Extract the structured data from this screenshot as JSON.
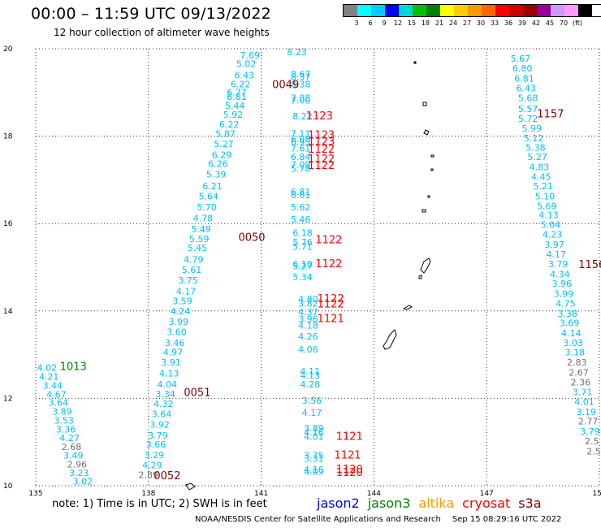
{
  "header": {
    "title": "00:00 – 11:59 UTC 09/13/2022",
    "subtitle": "12 hour collection of altimeter wave heights"
  },
  "legend": {
    "colors": [
      "#808080",
      "#00ffff",
      "#00ccff",
      "#0000ff",
      "#00d8d8",
      "#00c000",
      "#008000",
      "#ffff00",
      "#ffcc00",
      "#ff9900",
      "#ff6600",
      "#ff0000",
      "#cc0000",
      "#990000",
      "#990099",
      "#cc99ff",
      "#ff99ff",
      "#000000"
    ],
    "labels": [
      "3",
      "6",
      "9",
      "12",
      "15",
      "18",
      "21",
      "24",
      "27",
      "30",
      "33",
      "36",
      "39",
      "42",
      "45",
      "70",
      "(ft)"
    ]
  },
  "chart_data": {
    "type": "map-scatter",
    "xlim": [
      135,
      150
    ],
    "ylim": [
      10,
      20
    ],
    "x_ticks": [
      135,
      138,
      141,
      144,
      147,
      150
    ],
    "y_ticks": [
      10,
      12,
      14,
      16,
      18,
      20
    ],
    "x_tick_labels": [
      "135",
      "138",
      "141",
      "144",
      "147",
      "150"
    ],
    "y_tick_labels": [
      "10",
      "12",
      "14",
      "16",
      "18",
      "20"
    ],
    "colors": {
      "lightblue": "#00bfff",
      "cyan": "#00e0e0",
      "gray": "#707070",
      "red": "#ff0000",
      "darkred": "#800000",
      "green": "#008000"
    },
    "waves": [
      {
        "lon": 141.95,
        "lat": 19.85,
        "text": "8.23",
        "c": "lightblue"
      },
      {
        "lon": 140.7,
        "lat": 19.78,
        "text": "7.69",
        "c": "lightblue"
      },
      {
        "lon": 140.6,
        "lat": 19.58,
        "text": "5.02",
        "c": "lightblue"
      },
      {
        "lon": 142.05,
        "lat": 19.35,
        "text": "8.67",
        "c": "lightblue"
      },
      {
        "lon": 140.55,
        "lat": 19.32,
        "text": "6.43",
        "c": "lightblue"
      },
      {
        "lon": 142.05,
        "lat": 19.28,
        "text": "8.37",
        "c": "lightblue"
      },
      {
        "lon": 142.05,
        "lat": 19.12,
        "text": "8.38",
        "c": "lightblue"
      },
      {
        "lon": 140.45,
        "lat": 19.12,
        "text": "6.22",
        "c": "lightblue"
      },
      {
        "lon": 140.35,
        "lat": 18.93,
        "text": "6.77",
        "c": "lightblue"
      },
      {
        "lon": 140.35,
        "lat": 18.83,
        "text": "6.81",
        "c": "lightblue"
      },
      {
        "lon": 142.05,
        "lat": 18.8,
        "text": "7.88",
        "c": "lightblue"
      },
      {
        "lon": 142.05,
        "lat": 18.75,
        "text": "7.00",
        "c": "lightblue"
      },
      {
        "lon": 140.3,
        "lat": 18.62,
        "text": "5.44",
        "c": "lightblue"
      },
      {
        "lon": 140.25,
        "lat": 18.42,
        "text": "5.92",
        "c": "lightblue"
      },
      {
        "lon": 142.1,
        "lat": 18.38,
        "text": "8.22",
        "c": "lightblue"
      },
      {
        "lon": 140.15,
        "lat": 18.2,
        "text": "6.22",
        "c": "lightblue"
      },
      {
        "lon": 140.05,
        "lat": 17.98,
        "text": "5.87",
        "c": "lightblue"
      },
      {
        "lon": 142.05,
        "lat": 17.98,
        "text": "7.11",
        "c": "lightblue"
      },
      {
        "lon": 142.05,
        "lat": 17.86,
        "text": "6.08",
        "c": "lightblue"
      },
      {
        "lon": 142.05,
        "lat": 17.8,
        "text": "6.93",
        "c": "lightblue"
      },
      {
        "lon": 140.0,
        "lat": 17.75,
        "text": "5.27",
        "c": "lightblue"
      },
      {
        "lon": 142.05,
        "lat": 17.65,
        "text": "7.61",
        "c": "lightblue"
      },
      {
        "lon": 139.95,
        "lat": 17.5,
        "text": "6.29",
        "c": "lightblue"
      },
      {
        "lon": 142.05,
        "lat": 17.45,
        "text": "6.84",
        "c": "lightblue"
      },
      {
        "lon": 139.85,
        "lat": 17.3,
        "text": "6.26",
        "c": "lightblue"
      },
      {
        "lon": 142.05,
        "lat": 17.28,
        "text": "7.09",
        "c": "lightblue"
      },
      {
        "lon": 142.05,
        "lat": 17.18,
        "text": "5.78",
        "c": "lightblue"
      },
      {
        "lon": 139.8,
        "lat": 17.05,
        "text": "5.39",
        "c": "lightblue"
      },
      {
        "lon": 139.7,
        "lat": 16.78,
        "text": "6.21",
        "c": "lightblue"
      },
      {
        "lon": 142.05,
        "lat": 16.65,
        "text": "6.81",
        "c": "lightblue"
      },
      {
        "lon": 142.05,
        "lat": 16.58,
        "text": "6.01",
        "c": "lightblue"
      },
      {
        "lon": 139.6,
        "lat": 16.55,
        "text": "5.64",
        "c": "lightblue"
      },
      {
        "lon": 139.55,
        "lat": 16.3,
        "text": "5.70",
        "c": "lightblue"
      },
      {
        "lon": 142.05,
        "lat": 16.3,
        "text": "5.62",
        "c": "lightblue"
      },
      {
        "lon": 139.45,
        "lat": 16.05,
        "text": "4.78",
        "c": "lightblue"
      },
      {
        "lon": 142.05,
        "lat": 16.02,
        "text": "5.46",
        "c": "lightblue"
      },
      {
        "lon": 139.4,
        "lat": 15.8,
        "text": "5.49",
        "c": "lightblue"
      },
      {
        "lon": 142.1,
        "lat": 15.72,
        "text": "6.18",
        "c": "lightblue"
      },
      {
        "lon": 139.35,
        "lat": 15.58,
        "text": "5.59",
        "c": "lightblue"
      },
      {
        "lon": 142.1,
        "lat": 15.5,
        "text": "5.76",
        "c": "lightblue"
      },
      {
        "lon": 142.1,
        "lat": 15.4,
        "text": "5.71",
        "c": "lightblue"
      },
      {
        "lon": 139.3,
        "lat": 15.37,
        "text": "5.45",
        "c": "lightblue"
      },
      {
        "lon": 139.2,
        "lat": 15.1,
        "text": "4.79",
        "c": "lightblue"
      },
      {
        "lon": 142.1,
        "lat": 15.0,
        "text": "6.10",
        "c": "lightblue"
      },
      {
        "lon": 142.1,
        "lat": 14.95,
        "text": "5.27",
        "c": "lightblue"
      },
      {
        "lon": 139.15,
        "lat": 14.87,
        "text": "5.61",
        "c": "lightblue"
      },
      {
        "lon": 142.1,
        "lat": 14.7,
        "text": "5.34",
        "c": "lightblue"
      },
      {
        "lon": 139.05,
        "lat": 14.63,
        "text": "3.75",
        "c": "lightblue"
      },
      {
        "lon": 139.0,
        "lat": 14.38,
        "text": "4.17",
        "c": "lightblue"
      },
      {
        "lon": 142.25,
        "lat": 14.2,
        "text": "4.80",
        "c": "lightblue"
      },
      {
        "lon": 142.25,
        "lat": 14.1,
        "text": "3.82",
        "c": "lightblue"
      },
      {
        "lon": 138.9,
        "lat": 14.15,
        "text": "3.59",
        "c": "lightblue"
      },
      {
        "lon": 142.25,
        "lat": 13.9,
        "text": "4.37",
        "c": "lightblue"
      },
      {
        "lon": 138.85,
        "lat": 13.92,
        "text": "4.24",
        "c": "lightblue"
      },
      {
        "lon": 142.25,
        "lat": 13.75,
        "text": "3.96",
        "c": "lightblue"
      },
      {
        "lon": 138.8,
        "lat": 13.68,
        "text": "3.99",
        "c": "lightblue"
      },
      {
        "lon": 142.25,
        "lat": 13.6,
        "text": "4.18",
        "c": "lightblue"
      },
      {
        "lon": 138.75,
        "lat": 13.45,
        "text": "3.60",
        "c": "lightblue"
      },
      {
        "lon": 142.25,
        "lat": 13.35,
        "text": "4.26",
        "c": "lightblue"
      },
      {
        "lon": 138.7,
        "lat": 13.2,
        "text": "3.46",
        "c": "lightblue"
      },
      {
        "lon": 142.25,
        "lat": 13.05,
        "text": "4.06",
        "c": "lightblue"
      },
      {
        "lon": 138.65,
        "lat": 12.98,
        "text": "4.97",
        "c": "lightblue"
      },
      {
        "lon": 138.6,
        "lat": 12.75,
        "text": "3.91",
        "c": "lightblue"
      },
      {
        "lon": 142.3,
        "lat": 12.55,
        "text": "4.11",
        "c": "lightblue"
      },
      {
        "lon": 142.3,
        "lat": 12.45,
        "text": "4.13",
        "c": "lightblue"
      },
      {
        "lon": 138.55,
        "lat": 12.5,
        "text": "4.13",
        "c": "lightblue"
      },
      {
        "lon": 138.5,
        "lat": 12.25,
        "text": "4.04",
        "c": "lightblue"
      },
      {
        "lon": 142.3,
        "lat": 12.25,
        "text": "4.28",
        "c": "lightblue"
      },
      {
        "lon": 138.45,
        "lat": 12.03,
        "text": "3.34",
        "c": "lightblue"
      },
      {
        "lon": 142.35,
        "lat": 11.88,
        "text": "3.56",
        "c": "lightblue"
      },
      {
        "lon": 138.4,
        "lat": 11.8,
        "text": "4.32",
        "c": "lightblue"
      },
      {
        "lon": 142.35,
        "lat": 11.6,
        "text": "4.17",
        "c": "lightblue"
      },
      {
        "lon": 138.35,
        "lat": 11.57,
        "text": "3.64",
        "c": "lightblue"
      },
      {
        "lon": 138.3,
        "lat": 11.33,
        "text": "3.92",
        "c": "lightblue"
      },
      {
        "lon": 142.4,
        "lat": 11.25,
        "text": "3.89",
        "c": "lightblue"
      },
      {
        "lon": 142.4,
        "lat": 11.15,
        "text": "4.16",
        "c": "lightblue"
      },
      {
        "lon": 138.25,
        "lat": 11.08,
        "text": "3.79",
        "c": "lightblue"
      },
      {
        "lon": 142.4,
        "lat": 11.05,
        "text": "4.01",
        "c": "lightblue"
      },
      {
        "lon": 138.2,
        "lat": 10.87,
        "text": "3.66",
        "c": "lightblue"
      },
      {
        "lon": 142.4,
        "lat": 10.62,
        "text": "3.75",
        "c": "lightblue"
      },
      {
        "lon": 138.15,
        "lat": 10.63,
        "text": "3.29",
        "c": "lightblue"
      },
      {
        "lon": 142.4,
        "lat": 10.55,
        "text": "3.31",
        "c": "lightblue"
      },
      {
        "lon": 138.1,
        "lat": 10.4,
        "text": "4.29",
        "c": "lightblue"
      },
      {
        "lon": 142.4,
        "lat": 10.3,
        "text": "4.16",
        "c": "lightblue"
      },
      {
        "lon": 142.4,
        "lat": 10.25,
        "text": "4.09",
        "c": "lightblue"
      },
      {
        "lon": 138.0,
        "lat": 10.18,
        "text": "2.89",
        "c": "gray"
      },
      {
        "lon": 135.3,
        "lat": 12.63,
        "text": "4.02",
        "c": "lightblue"
      },
      {
        "lon": 135.35,
        "lat": 12.43,
        "text": "4.21",
        "c": "lightblue"
      },
      {
        "lon": 135.45,
        "lat": 12.22,
        "text": "3.44",
        "c": "lightblue"
      },
      {
        "lon": 135.55,
        "lat": 12.02,
        "text": "4.67",
        "c": "lightblue"
      },
      {
        "lon": 135.6,
        "lat": 11.83,
        "text": "3.64",
        "c": "lightblue"
      },
      {
        "lon": 135.7,
        "lat": 11.63,
        "text": "3.89",
        "c": "lightblue"
      },
      {
        "lon": 135.75,
        "lat": 11.42,
        "text": "3.53",
        "c": "lightblue"
      },
      {
        "lon": 135.8,
        "lat": 11.22,
        "text": "3.36",
        "c": "lightblue"
      },
      {
        "lon": 135.9,
        "lat": 11.02,
        "text": "4.27",
        "c": "lightblue"
      },
      {
        "lon": 135.95,
        "lat": 10.82,
        "text": "2.68",
        "c": "gray"
      },
      {
        "lon": 136.0,
        "lat": 10.62,
        "text": "3.49",
        "c": "lightblue"
      },
      {
        "lon": 136.1,
        "lat": 10.42,
        "text": "2.96",
        "c": "gray"
      },
      {
        "lon": 136.15,
        "lat": 10.22,
        "text": "3.23",
        "c": "lightblue"
      },
      {
        "lon": 136.25,
        "lat": 10.03,
        "text": "3.02",
        "c": "lightblue"
      },
      {
        "lon": 147.9,
        "lat": 19.7,
        "text": "5.67",
        "c": "lightblue"
      },
      {
        "lon": 147.95,
        "lat": 19.48,
        "text": "6.80",
        "c": "lightblue"
      },
      {
        "lon": 148.0,
        "lat": 19.25,
        "text": "6.81",
        "c": "lightblue"
      },
      {
        "lon": 148.05,
        "lat": 19.02,
        "text": "6.43",
        "c": "lightblue"
      },
      {
        "lon": 148.1,
        "lat": 18.8,
        "text": "5.68",
        "c": "lightblue"
      },
      {
        "lon": 148.1,
        "lat": 18.55,
        "text": "5.57",
        "c": "lightblue"
      },
      {
        "lon": 148.1,
        "lat": 18.33,
        "text": "5.72",
        "c": "lightblue"
      },
      {
        "lon": 148.2,
        "lat": 18.1,
        "text": "5.99",
        "c": "lightblue"
      },
      {
        "lon": 148.25,
        "lat": 17.88,
        "text": "5.12",
        "c": "lightblue"
      },
      {
        "lon": 148.3,
        "lat": 17.67,
        "text": "5.38",
        "c": "lightblue"
      },
      {
        "lon": 148.35,
        "lat": 17.45,
        "text": "5.27",
        "c": "lightblue"
      },
      {
        "lon": 148.4,
        "lat": 17.22,
        "text": "4.83",
        "c": "lightblue"
      },
      {
        "lon": 148.45,
        "lat": 17.0,
        "text": "4.45",
        "c": "lightblue"
      },
      {
        "lon": 148.5,
        "lat": 16.78,
        "text": "5.21",
        "c": "lightblue"
      },
      {
        "lon": 148.55,
        "lat": 16.55,
        "text": "5.10",
        "c": "lightblue"
      },
      {
        "lon": 148.6,
        "lat": 16.33,
        "text": "5.69",
        "c": "lightblue"
      },
      {
        "lon": 148.65,
        "lat": 16.12,
        "text": "4.13",
        "c": "lightblue"
      },
      {
        "lon": 148.7,
        "lat": 15.9,
        "text": "5.04",
        "c": "lightblue"
      },
      {
        "lon": 148.75,
        "lat": 15.68,
        "text": "4.23",
        "c": "lightblue"
      },
      {
        "lon": 148.8,
        "lat": 15.45,
        "text": "3.97",
        "c": "lightblue"
      },
      {
        "lon": 148.85,
        "lat": 15.22,
        "text": "4.17",
        "c": "lightblue"
      },
      {
        "lon": 148.9,
        "lat": 15.0,
        "text": "3.79",
        "c": "lightblue"
      },
      {
        "lon": 148.95,
        "lat": 14.77,
        "text": "4.34",
        "c": "lightblue"
      },
      {
        "lon": 149.0,
        "lat": 14.55,
        "text": "3.96",
        "c": "lightblue"
      },
      {
        "lon": 149.05,
        "lat": 14.32,
        "text": "3.99",
        "c": "lightblue"
      },
      {
        "lon": 149.1,
        "lat": 14.1,
        "text": "4.75",
        "c": "lightblue"
      },
      {
        "lon": 149.15,
        "lat": 13.87,
        "text": "3.38",
        "c": "lightblue"
      },
      {
        "lon": 149.2,
        "lat": 13.65,
        "text": "3.69",
        "c": "lightblue"
      },
      {
        "lon": 149.25,
        "lat": 13.42,
        "text": "4.14",
        "c": "lightblue"
      },
      {
        "lon": 149.3,
        "lat": 13.2,
        "text": "3.03",
        "c": "lightblue"
      },
      {
        "lon": 149.35,
        "lat": 12.98,
        "text": "3.18",
        "c": "lightblue"
      },
      {
        "lon": 149.4,
        "lat": 12.75,
        "text": "2.83",
        "c": "gray"
      },
      {
        "lon": 149.45,
        "lat": 12.52,
        "text": "2.67",
        "c": "gray"
      },
      {
        "lon": 149.5,
        "lat": 12.3,
        "text": "2.36",
        "c": "gray"
      },
      {
        "lon": 149.55,
        "lat": 12.07,
        "text": "3.71",
        "c": "lightblue"
      },
      {
        "lon": 149.6,
        "lat": 11.85,
        "text": "4.01",
        "c": "lightblue"
      },
      {
        "lon": 149.65,
        "lat": 11.62,
        "text": "3.19",
        "c": "lightblue"
      },
      {
        "lon": 149.7,
        "lat": 11.4,
        "text": "2.77",
        "c": "gray"
      },
      {
        "lon": 149.75,
        "lat": 11.17,
        "text": "3.79",
        "c": "lightblue"
      },
      {
        "lon": 149.8,
        "lat": 10.95,
        "text": "2.5",
        "c": "gray"
      },
      {
        "lon": 149.85,
        "lat": 10.72,
        "text": "2.5",
        "c": "gray"
      }
    ],
    "times": [
      {
        "lon": 141.65,
        "lat": 19.1,
        "text": "0049",
        "c": "darkred"
      },
      {
        "lon": 142.55,
        "lat": 18.38,
        "text": "1123",
        "c": "red"
      },
      {
        "lon": 148.7,
        "lat": 18.43,
        "text": "1157",
        "c": "darkred"
      },
      {
        "lon": 142.6,
        "lat": 17.95,
        "text": "1123",
        "c": "red"
      },
      {
        "lon": 142.6,
        "lat": 17.8,
        "text": "1123",
        "c": "red"
      },
      {
        "lon": 142.6,
        "lat": 17.62,
        "text": "1122",
        "c": "red"
      },
      {
        "lon": 142.6,
        "lat": 17.4,
        "text": "1122",
        "c": "red"
      },
      {
        "lon": 142.6,
        "lat": 17.25,
        "text": "1122",
        "c": "red"
      },
      {
        "lon": 140.75,
        "lat": 15.6,
        "text": "0050",
        "c": "darkred"
      },
      {
        "lon": 142.8,
        "lat": 15.55,
        "text": "1122",
        "c": "red"
      },
      {
        "lon": 142.8,
        "lat": 15.0,
        "text": "1122",
        "c": "red"
      },
      {
        "lon": 149.8,
        "lat": 14.98,
        "text": "1156",
        "c": "darkred"
      },
      {
        "lon": 142.85,
        "lat": 14.2,
        "text": "1122",
        "c": "red"
      },
      {
        "lon": 142.85,
        "lat": 14.08,
        "text": "1122",
        "c": "red"
      },
      {
        "lon": 142.85,
        "lat": 13.75,
        "text": "1121",
        "c": "red"
      },
      {
        "lon": 136.0,
        "lat": 12.65,
        "text": "1013",
        "c": "green"
      },
      {
        "lon": 139.3,
        "lat": 12.05,
        "text": "0051",
        "c": "darkred"
      },
      {
        "lon": 143.35,
        "lat": 11.05,
        "text": "1121",
        "c": "red"
      },
      {
        "lon": 143.3,
        "lat": 10.62,
        "text": "1121",
        "c": "red"
      },
      {
        "lon": 143.35,
        "lat": 10.3,
        "text": "1120",
        "c": "red"
      },
      {
        "lon": 143.35,
        "lat": 10.22,
        "text": "1120",
        "c": "red"
      },
      {
        "lon": 138.5,
        "lat": 10.15,
        "text": "0052",
        "c": "darkred"
      }
    ]
  },
  "footer": {
    "note": "note: 1) Time is in UTC; 2) SWH is in feet",
    "satellites": [
      {
        "name": "jason2",
        "color": "#0000ff"
      },
      {
        "name": "jason3",
        "color": "#008000"
      },
      {
        "name": "altika",
        "color": "#ff9900"
      },
      {
        "name": "cryosat",
        "color": "#ff0000"
      },
      {
        "name": "s3a",
        "color": "#800000"
      }
    ],
    "credit": "NOAA/NESDIS Center for Satellite Applications and Research",
    "timestamp": "Sep 15 08:29:16 UTC 2022"
  }
}
